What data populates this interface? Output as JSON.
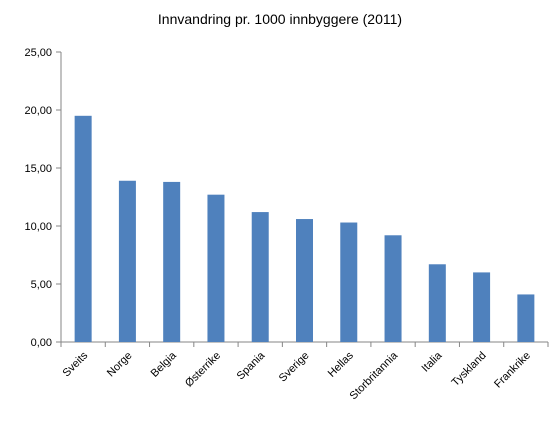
{
  "chart_data": {
    "type": "bar",
    "title": "Innvandring pr. 1000 innbyggere (2011)",
    "xlabel": "",
    "ylabel": "",
    "ylim": [
      0,
      25
    ],
    "yticks": [
      "0,00",
      "5,00",
      "10,00",
      "15,00",
      "20,00",
      "25,00"
    ],
    "ytick_values": [
      0,
      5,
      10,
      15,
      20,
      25
    ],
    "grid": false,
    "legend": "none",
    "bar_color": "#4f81bd",
    "categories": [
      "Sveits",
      "Norge",
      "Belgia",
      "Østerrike",
      "Spania",
      "Sverige",
      "Hellas",
      "Storbritannia",
      "Italia",
      "Tyskland",
      "Frankrike"
    ],
    "values": [
      19.5,
      13.9,
      13.8,
      12.7,
      11.2,
      10.6,
      10.3,
      9.2,
      6.7,
      6.0,
      4.1
    ]
  }
}
